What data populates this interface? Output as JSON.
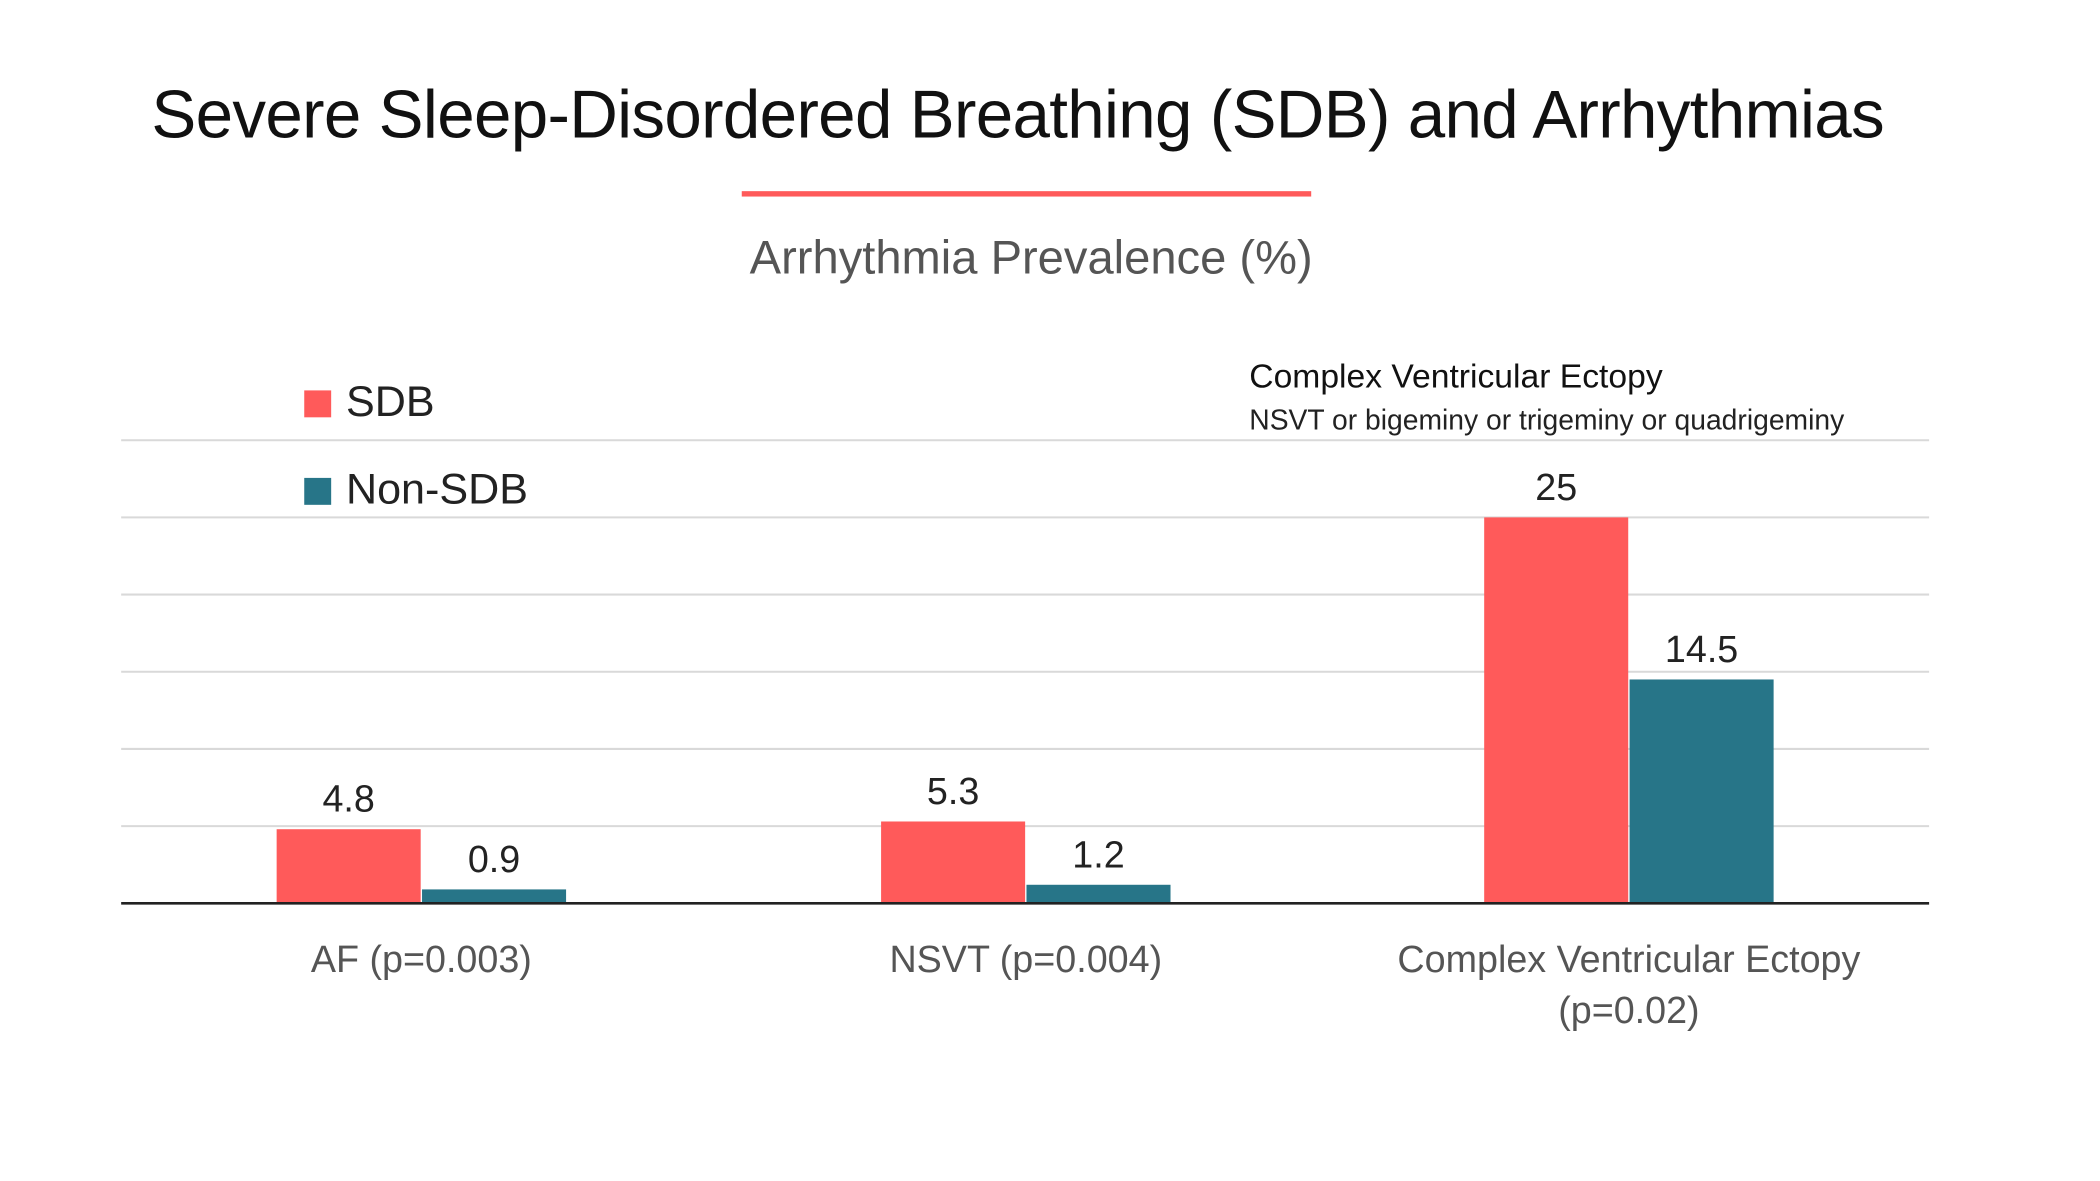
{
  "chart_data": {
    "type": "bar",
    "title": "Severe Sleep-Disordered Breathing (SDB) and Arrhythmias",
    "subtitle": "Arrhythmia Prevalence (%)",
    "xlabel": "",
    "ylabel": "",
    "ylim": [
      0,
      30
    ],
    "grid": true,
    "legend_position": "top-left",
    "categories": [
      [
        "AF (p=0.003)"
      ],
      [
        "NSVT (p=0.004)"
      ],
      [
        "Complex Ventricular Ectopy",
        "(p=0.02)"
      ]
    ],
    "series": [
      {
        "name": "SDB",
        "color": "#ff5a5a",
        "values": [
          4.8,
          5.3,
          25
        ],
        "labels": [
          "4.8",
          "5.3",
          "25"
        ]
      },
      {
        "name": "Non-SDB",
        "color": "#277588",
        "values": [
          0.9,
          1.2,
          14.5
        ],
        "labels": [
          "0.9",
          "1.2",
          "14.5"
        ]
      }
    ],
    "annotation": {
      "title": "Complex Ventricular Ectopy",
      "text": "NSVT or bigeminy or trigeminy or quadrigeminy"
    }
  }
}
